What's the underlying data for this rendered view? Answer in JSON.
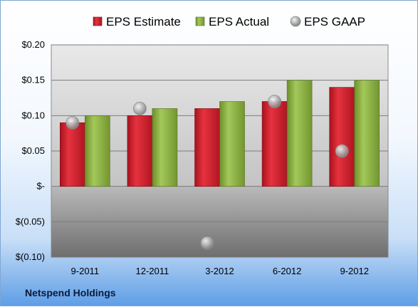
{
  "chart_data": {
    "type": "bar",
    "title": "",
    "xlabel": "",
    "ylabel": "",
    "categories": [
      "9-2011",
      "12-2011",
      "3-2012",
      "6-2012",
      "9-2012"
    ],
    "series": [
      {
        "name": "EPS Estimate",
        "kind": "bar",
        "color": "#d92030",
        "values": [
          0.09,
          0.1,
          0.11,
          0.12,
          0.14
        ]
      },
      {
        "name": "EPS Actual",
        "kind": "bar",
        "color": "#8cb040",
        "values": [
          0.1,
          0.11,
          0.12,
          0.15,
          0.15
        ]
      },
      {
        "name": "EPS GAAP",
        "kind": "scatter",
        "color": "#a8a8a8",
        "values": [
          0.09,
          0.11,
          -0.08,
          0.12,
          0.05
        ]
      }
    ],
    "ylim": [
      -0.1,
      0.2
    ],
    "yticks": [
      0.2,
      0.15,
      0.1,
      0.05,
      0.0,
      -0.05,
      -0.1
    ],
    "ytick_labels": [
      "$0.20",
      "$0.15",
      "$0.10",
      "$0.05",
      "$-",
      "$(0.05)",
      "$(0.10)"
    ],
    "grid": true,
    "legend_position": "top"
  },
  "company": "Netspend Holdings"
}
